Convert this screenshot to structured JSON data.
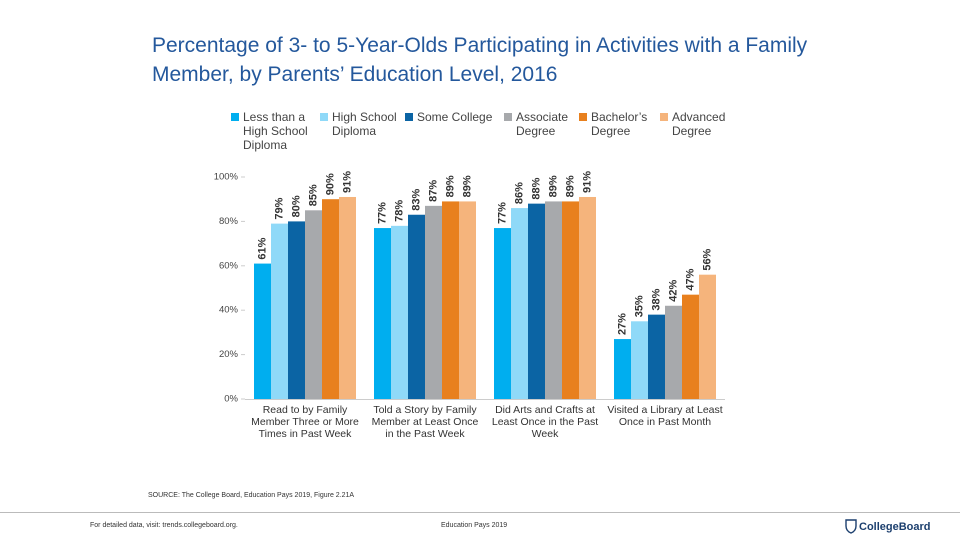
{
  "chart_data": {
    "type": "bar",
    "title": "Percentage of 3- to 5-Year-Olds Participating in Activities with a Family Member, by Parents’ Education Level, 2016",
    "categories": [
      "Read to by Family Member Three or More Times in Past Week",
      "Told a Story by Family Member at Least Once in the Past Week",
      "Did Arts and Crafts at Least Once in the Past Week",
      "Visited a Library at Least Once in Past Month"
    ],
    "series": [
      {
        "name": "Less than a High School Diploma",
        "color": "#00aeef",
        "values": [
          61,
          77,
          77,
          27
        ],
        "value_labels": [
          "61%",
          "77%",
          "77%",
          "27%"
        ]
      },
      {
        "name": "High School Diploma",
        "color": "#8fd9f8",
        "values": [
          79,
          78,
          86,
          35
        ],
        "value_labels": [
          "79%",
          "78%",
          "86%",
          "35%"
        ]
      },
      {
        "name": "Some College",
        "color": "#0b64a4",
        "values": [
          80,
          83,
          88,
          38
        ],
        "value_labels": [
          "80%",
          "83%",
          "88%",
          "38%"
        ]
      },
      {
        "name": "Associate Degree",
        "color": "#a7a9ac",
        "values": [
          85,
          87,
          89,
          42
        ],
        "value_labels": [
          "85%",
          "87%",
          "89%",
          "42%"
        ]
      },
      {
        "name": "Bachelor’s Degree",
        "color": "#e8801e",
        "values": [
          90,
          89,
          89,
          47
        ],
        "value_labels": [
          "90%",
          "89%",
          "89%",
          "47%"
        ]
      },
      {
        "name": "Advanced Degree",
        "color": "#f5b47c",
        "values": [
          91,
          89,
          91,
          56
        ],
        "value_labels": [
          "91%",
          "89%",
          "91%",
          "56%"
        ]
      }
    ],
    "ylim": [
      0,
      100
    ],
    "yticks": [
      {
        "value": 0,
        "label": "0%"
      },
      {
        "value": 20,
        "label": "20%"
      },
      {
        "value": 40,
        "label": "40%"
      },
      {
        "value": 60,
        "label": "60%"
      },
      {
        "value": 80,
        "label": "80%"
      },
      {
        "value": 100,
        "label": "100%"
      }
    ],
    "grid": false,
    "source": "SOURCE: The College Board, Education Pays 2019, Figure 2.21A"
  },
  "footer": {
    "left": "For detailed data, visit: trends.collegeboard.org.",
    "center": "Education Pays 2019",
    "logo": "CollegeBoard"
  }
}
